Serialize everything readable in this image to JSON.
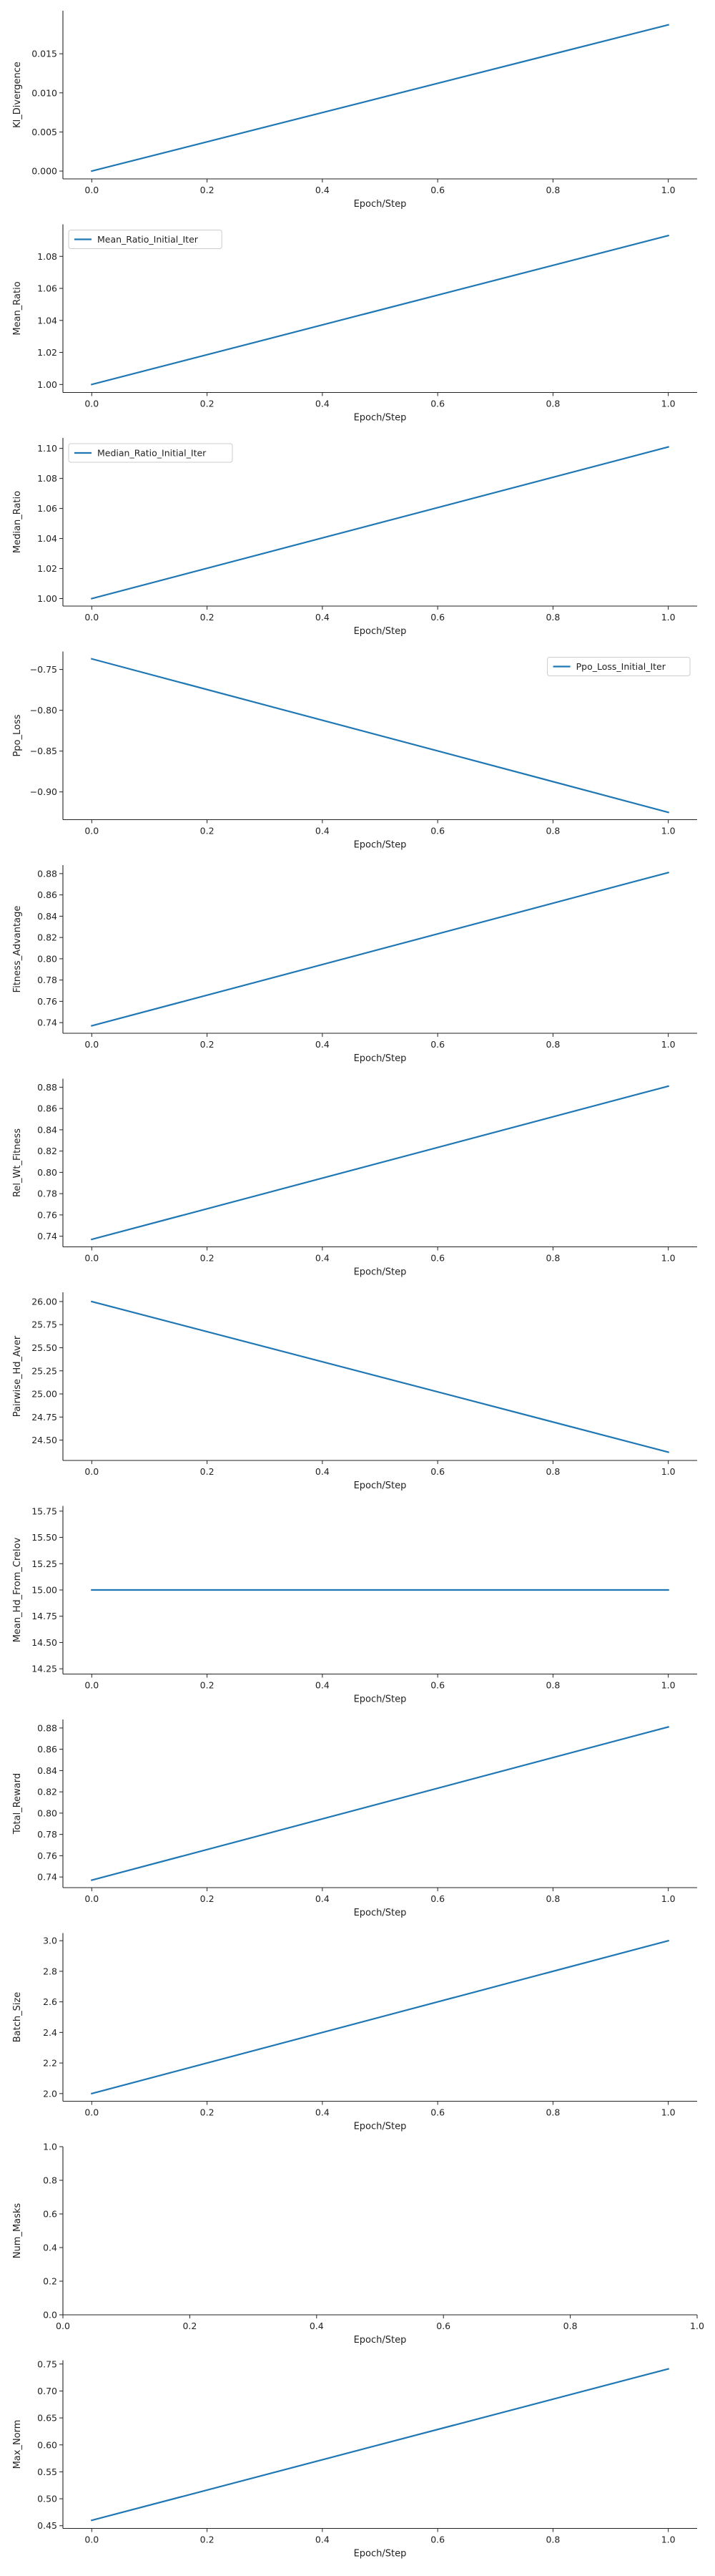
{
  "chart_data": [
    {
      "type": "line",
      "xlabel": "Epoch/Step",
      "ylabel": "Kl_Divergence",
      "xlim": [
        -0.05,
        1.05
      ],
      "ylim": [
        -0.001,
        0.0205
      ],
      "xticks": [
        0.0,
        0.2,
        0.4,
        0.6,
        0.8,
        1.0
      ],
      "xtick_labels": [
        "0.0",
        "0.2",
        "0.4",
        "0.6",
        "0.8",
        "1.0"
      ],
      "yticks": [
        0.0,
        0.005,
        0.01,
        0.015
      ],
      "ytick_labels": [
        "0.000",
        "0.005",
        "0.010",
        "0.015"
      ],
      "legend": "none",
      "grid": false,
      "series": [
        {
          "name": "",
          "color": "#1f77b4",
          "x": [
            0,
            1
          ],
          "y": [
            0.0,
            0.0187
          ]
        }
      ]
    },
    {
      "type": "line",
      "xlabel": "Epoch/Step",
      "ylabel": "Mean_Ratio",
      "xlim": [
        -0.05,
        1.05
      ],
      "ylim": [
        0.995,
        1.1
      ],
      "xticks": [
        0.0,
        0.2,
        0.4,
        0.6,
        0.8,
        1.0
      ],
      "xtick_labels": [
        "0.0",
        "0.2",
        "0.4",
        "0.6",
        "0.8",
        "1.0"
      ],
      "yticks": [
        1.0,
        1.02,
        1.04,
        1.06,
        1.08
      ],
      "ytick_labels": [
        "1.00",
        "1.02",
        "1.04",
        "1.06",
        "1.08"
      ],
      "legend": "upper-left",
      "grid": false,
      "series": [
        {
          "name": "Mean_Ratio_Initial_Iter",
          "color": "#1f77b4",
          "x": [
            0,
            1
          ],
          "y": [
            1.0,
            1.093
          ]
        }
      ]
    },
    {
      "type": "line",
      "xlabel": "Epoch/Step",
      "ylabel": "Median_Ratio",
      "xlim": [
        -0.05,
        1.05
      ],
      "ylim": [
        0.995,
        1.107
      ],
      "xticks": [
        0.0,
        0.2,
        0.4,
        0.6,
        0.8,
        1.0
      ],
      "xtick_labels": [
        "0.0",
        "0.2",
        "0.4",
        "0.6",
        "0.8",
        "1.0"
      ],
      "yticks": [
        1.0,
        1.02,
        1.04,
        1.06,
        1.08,
        1.1
      ],
      "ytick_labels": [
        "1.00",
        "1.02",
        "1.04",
        "1.06",
        "1.08",
        "1.10"
      ],
      "legend": "upper-left",
      "grid": false,
      "series": [
        {
          "name": "Median_Ratio_Initial_Iter",
          "color": "#1f77b4",
          "x": [
            0,
            1
          ],
          "y": [
            1.0,
            1.101
          ]
        }
      ]
    },
    {
      "type": "line",
      "xlabel": "Epoch/Step",
      "ylabel": "Ppo_Loss",
      "xlim": [
        -0.05,
        1.05
      ],
      "ylim": [
        -0.934,
        -0.728
      ],
      "xticks": [
        0.0,
        0.2,
        0.4,
        0.6,
        0.8,
        1.0
      ],
      "xtick_labels": [
        "0.0",
        "0.2",
        "0.4",
        "0.6",
        "0.8",
        "1.0"
      ],
      "yticks": [
        -0.75,
        -0.8,
        -0.85,
        -0.9
      ],
      "ytick_labels": [
        "−0.75",
        "−0.80",
        "−0.85",
        "−0.90"
      ],
      "legend": "upper-right",
      "grid": false,
      "series": [
        {
          "name": "Ppo_Loss_Initial_Iter",
          "color": "#1f77b4",
          "x": [
            0,
            1
          ],
          "y": [
            -0.737,
            -0.925
          ]
        }
      ]
    },
    {
      "type": "line",
      "xlabel": "Epoch/Step",
      "ylabel": "Fitness_Advantage",
      "xlim": [
        -0.05,
        1.05
      ],
      "ylim": [
        0.73,
        0.888
      ],
      "xticks": [
        0.0,
        0.2,
        0.4,
        0.6,
        0.8,
        1.0
      ],
      "xtick_labels": [
        "0.0",
        "0.2",
        "0.4",
        "0.6",
        "0.8",
        "1.0"
      ],
      "yticks": [
        0.74,
        0.76,
        0.78,
        0.8,
        0.82,
        0.84,
        0.86,
        0.88
      ],
      "ytick_labels": [
        "0.74",
        "0.76",
        "0.78",
        "0.80",
        "0.82",
        "0.84",
        "0.86",
        "0.88"
      ],
      "legend": "none",
      "grid": false,
      "series": [
        {
          "name": "",
          "color": "#1f77b4",
          "x": [
            0,
            1
          ],
          "y": [
            0.737,
            0.881
          ]
        }
      ]
    },
    {
      "type": "line",
      "xlabel": "Epoch/Step",
      "ylabel": "Rel_Wt_Fitness",
      "xlim": [
        -0.05,
        1.05
      ],
      "ylim": [
        0.73,
        0.888
      ],
      "xticks": [
        0.0,
        0.2,
        0.4,
        0.6,
        0.8,
        1.0
      ],
      "xtick_labels": [
        "0.0",
        "0.2",
        "0.4",
        "0.6",
        "0.8",
        "1.0"
      ],
      "yticks": [
        0.74,
        0.76,
        0.78,
        0.8,
        0.82,
        0.84,
        0.86,
        0.88
      ],
      "ytick_labels": [
        "0.74",
        "0.76",
        "0.78",
        "0.80",
        "0.82",
        "0.84",
        "0.86",
        "0.88"
      ],
      "legend": "none",
      "grid": false,
      "series": [
        {
          "name": "",
          "color": "#1f77b4",
          "x": [
            0,
            1
          ],
          "y": [
            0.737,
            0.881
          ]
        }
      ]
    },
    {
      "type": "line",
      "xlabel": "Epoch/Step",
      "ylabel": "Pairwise_Hd_Aver",
      "xlim": [
        -0.05,
        1.05
      ],
      "ylim": [
        24.28,
        26.1
      ],
      "xticks": [
        0.0,
        0.2,
        0.4,
        0.6,
        0.8,
        1.0
      ],
      "xtick_labels": [
        "0.0",
        "0.2",
        "0.4",
        "0.6",
        "0.8",
        "1.0"
      ],
      "yticks": [
        24.5,
        24.75,
        25.0,
        25.25,
        25.5,
        25.75,
        26.0
      ],
      "ytick_labels": [
        "24.50",
        "24.75",
        "25.00",
        "25.25",
        "25.50",
        "25.75",
        "26.00"
      ],
      "legend": "none",
      "grid": false,
      "series": [
        {
          "name": "",
          "color": "#1f77b4",
          "x": [
            0,
            1
          ],
          "y": [
            26.0,
            24.37
          ]
        }
      ]
    },
    {
      "type": "line",
      "xlabel": "Epoch/Step",
      "ylabel": "Mean_Hd_From_Crelov",
      "xlim": [
        -0.05,
        1.05
      ],
      "ylim": [
        14.2,
        15.8
      ],
      "xticks": [
        0.0,
        0.2,
        0.4,
        0.6,
        0.8,
        1.0
      ],
      "xtick_labels": [
        "0.0",
        "0.2",
        "0.4",
        "0.6",
        "0.8",
        "1.0"
      ],
      "yticks": [
        14.25,
        14.5,
        14.75,
        15.0,
        15.25,
        15.5,
        15.75
      ],
      "ytick_labels": [
        "14.25",
        "14.50",
        "14.75",
        "15.00",
        "15.25",
        "15.50",
        "15.75"
      ],
      "legend": "none",
      "grid": false,
      "series": [
        {
          "name": "",
          "color": "#1f77b4",
          "x": [
            0,
            1
          ],
          "y": [
            15.0,
            15.0
          ]
        }
      ]
    },
    {
      "type": "line",
      "xlabel": "Epoch/Step",
      "ylabel": "Total_Reward",
      "xlim": [
        -0.05,
        1.05
      ],
      "ylim": [
        0.73,
        0.888
      ],
      "xticks": [
        0.0,
        0.2,
        0.4,
        0.6,
        0.8,
        1.0
      ],
      "xtick_labels": [
        "0.0",
        "0.2",
        "0.4",
        "0.6",
        "0.8",
        "1.0"
      ],
      "yticks": [
        0.74,
        0.76,
        0.78,
        0.8,
        0.82,
        0.84,
        0.86,
        0.88
      ],
      "ytick_labels": [
        "0.74",
        "0.76",
        "0.78",
        "0.80",
        "0.82",
        "0.84",
        "0.86",
        "0.88"
      ],
      "legend": "none",
      "grid": false,
      "series": [
        {
          "name": "",
          "color": "#1f77b4",
          "x": [
            0,
            1
          ],
          "y": [
            0.737,
            0.881
          ]
        }
      ]
    },
    {
      "type": "line",
      "xlabel": "Epoch/Step",
      "ylabel": "Batch_Size",
      "xlim": [
        -0.05,
        1.05
      ],
      "ylim": [
        1.95,
        3.05
      ],
      "xticks": [
        0.0,
        0.2,
        0.4,
        0.6,
        0.8,
        1.0
      ],
      "xtick_labels": [
        "0.0",
        "0.2",
        "0.4",
        "0.6",
        "0.8",
        "1.0"
      ],
      "yticks": [
        2.0,
        2.2,
        2.4,
        2.6,
        2.8,
        3.0
      ],
      "ytick_labels": [
        "2.0",
        "2.2",
        "2.4",
        "2.6",
        "2.8",
        "3.0"
      ],
      "legend": "none",
      "grid": false,
      "series": [
        {
          "name": "",
          "color": "#1f77b4",
          "x": [
            0,
            1
          ],
          "y": [
            2.0,
            3.0
          ]
        }
      ]
    },
    {
      "type": "line",
      "xlabel": "Epoch/Step",
      "ylabel": "Num_Masks",
      "xlim": [
        0.0,
        1.0
      ],
      "ylim": [
        0.0,
        1.0
      ],
      "xticks": [
        0.0,
        0.2,
        0.4,
        0.6,
        0.8,
        1.0
      ],
      "xtick_labels": [
        "0.0",
        "0.2",
        "0.4",
        "0.6",
        "0.8",
        "1.0"
      ],
      "yticks": [
        0.0,
        0.2,
        0.4,
        0.6,
        0.8,
        1.0
      ],
      "ytick_labels": [
        "0.0",
        "0.2",
        "0.4",
        "0.6",
        "0.8",
        "1.0"
      ],
      "legend": "none",
      "grid": false,
      "series": []
    },
    {
      "type": "line",
      "xlabel": "Epoch/Step",
      "ylabel": "Max_Norm",
      "xlim": [
        -0.05,
        1.05
      ],
      "ylim": [
        0.445,
        0.757
      ],
      "xticks": [
        0.0,
        0.2,
        0.4,
        0.6,
        0.8,
        1.0
      ],
      "xtick_labels": [
        "0.0",
        "0.2",
        "0.4",
        "0.6",
        "0.8",
        "1.0"
      ],
      "yticks": [
        0.45,
        0.5,
        0.55,
        0.6,
        0.65,
        0.7,
        0.75
      ],
      "ytick_labels": [
        "0.45",
        "0.50",
        "0.55",
        "0.60",
        "0.65",
        "0.70",
        "0.75"
      ],
      "legend": "none",
      "grid": false,
      "series": [
        {
          "name": "",
          "color": "#1f77b4",
          "x": [
            0,
            1
          ],
          "y": [
            0.46,
            0.741
          ]
        }
      ]
    }
  ]
}
